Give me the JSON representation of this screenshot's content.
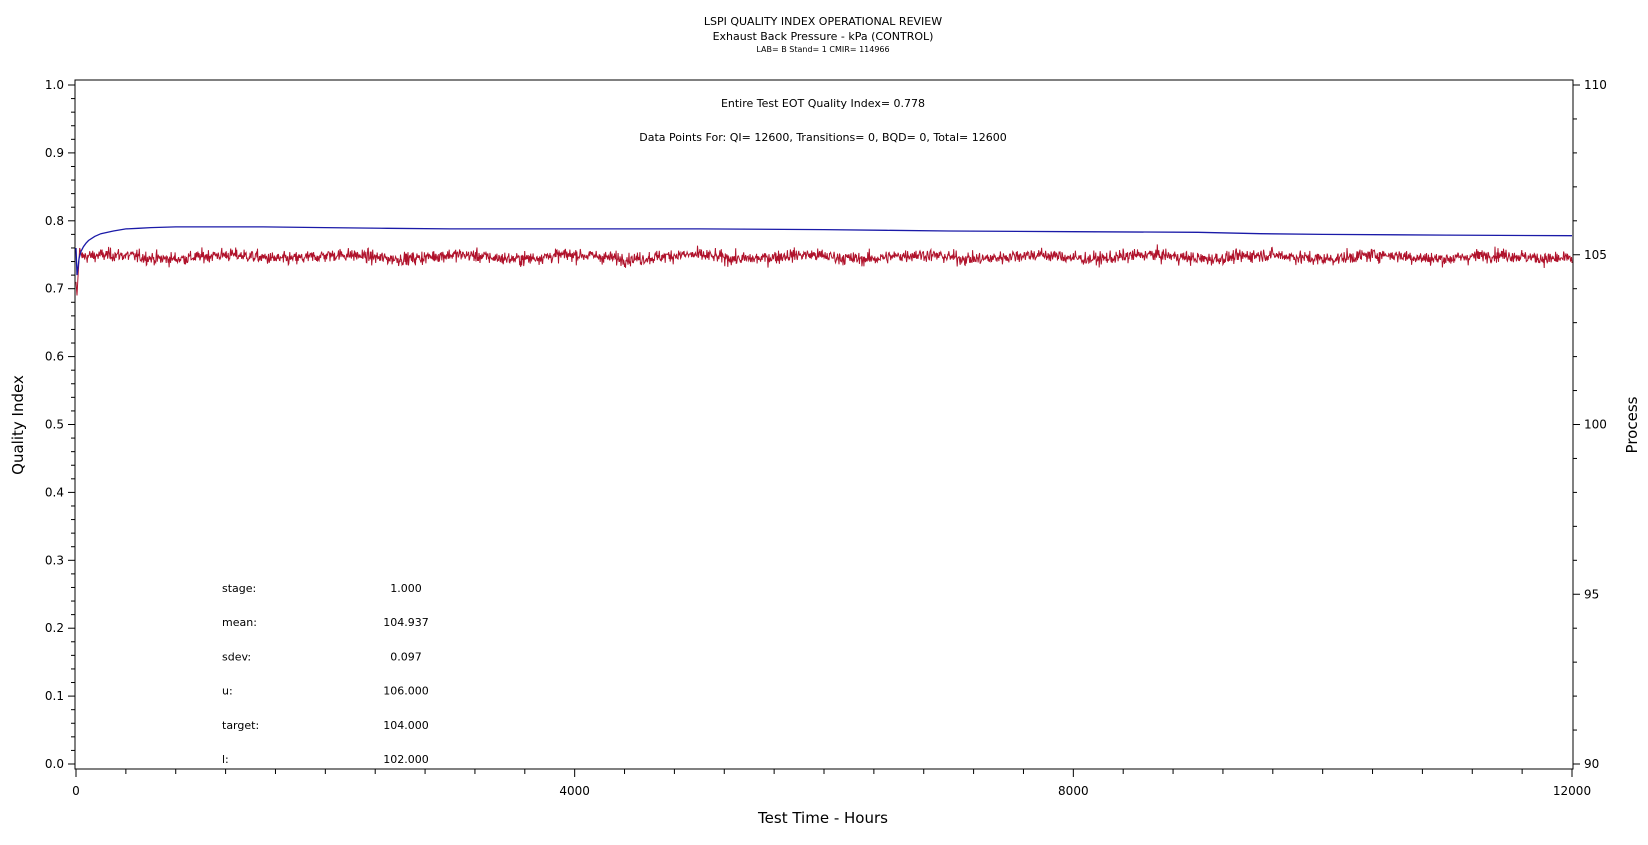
{
  "chart_data": {
    "type": "line",
    "title": "LSPI QUALITY INDEX OPERATIONAL REVIEW",
    "subtitle": "Exhaust Back Pressure - kPa (CONTROL)",
    "subtitle2": "LAB= B Stand= 1 CMIR= 114966",
    "annotations": {
      "qi_text": "Entire Test EOT Quality Index=   0.778",
      "points_text": "Data Points For: QI= 12600, Transitions=      0, BQD=      0, Total= 12600"
    },
    "xlabel": "Test Time - Hours",
    "ylabel": "Quality Index",
    "y2label": "Process",
    "xlim": [
      0,
      12000
    ],
    "ylim": [
      0.0,
      1.0
    ],
    "y2lim": [
      90,
      110
    ],
    "x_ticks": [
      "0",
      "4000",
      "8000",
      "12000"
    ],
    "x_tick_values": [
      0,
      4000,
      8000,
      12000
    ],
    "y_ticks": [
      "0.0",
      "0.1",
      "0.2",
      "0.3",
      "0.4",
      "0.5",
      "0.6",
      "0.7",
      "0.8",
      "0.9",
      "1.0"
    ],
    "y_tick_values": [
      0.0,
      0.1,
      0.2,
      0.3,
      0.4,
      0.5,
      0.6,
      0.7,
      0.8,
      0.9,
      1.0
    ],
    "y2_ticks": [
      "90",
      "95",
      "100",
      "105",
      "110"
    ],
    "y2_tick_values": [
      90,
      95,
      100,
      105,
      110
    ],
    "series": [
      {
        "axis": "left",
        "color": "#1a1aa8",
        "x": [
          0,
          8,
          15,
          25,
          40,
          60,
          80,
          100,
          150,
          200,
          300,
          400,
          500,
          600,
          800,
          1000,
          1500,
          2000,
          2500,
          3000,
          3500,
          4000,
          5000,
          6000,
          6500,
          7000,
          8000,
          9000,
          9500,
          10000,
          11000,
          12000
        ],
        "values": [
          0.76,
          0.72,
          0.73,
          0.745,
          0.755,
          0.762,
          0.767,
          0.771,
          0.777,
          0.781,
          0.785,
          0.788,
          0.789,
          0.79,
          0.791,
          0.791,
          0.791,
          0.79,
          0.789,
          0.788,
          0.788,
          0.788,
          0.788,
          0.787,
          0.786,
          0.785,
          0.784,
          0.783,
          0.781,
          0.78,
          0.779,
          0.778
        ]
      },
      {
        "axis": "right",
        "color": "#b0122b",
        "mean": 104.937,
        "noise_sd": 0.097,
        "x": [
          0,
          8,
          15,
          30,
          50
        ],
        "values": [
          104.2,
          103.8,
          104.3,
          105.2,
          104.9
        ]
      }
    ],
    "stats": [
      {
        "label": "stage:",
        "value": "1.000"
      },
      {
        "label": "mean:",
        "value": "104.937"
      },
      {
        "label": "sdev:",
        "value": "0.097"
      },
      {
        "label": "u:",
        "value": "106.000"
      },
      {
        "label": "target:",
        "value": "104.000"
      },
      {
        "label": "l:",
        "value": "102.000"
      }
    ]
  }
}
